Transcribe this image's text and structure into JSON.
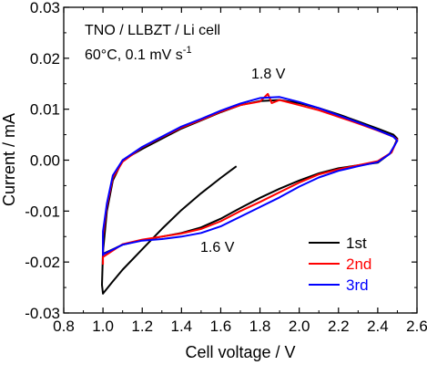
{
  "chart_data": {
    "type": "line",
    "title": "",
    "xlabel": "Cell voltage / V",
    "ylabel": "Current / mA",
    "xlim": [
      0.8,
      2.6
    ],
    "ylim": [
      -0.03,
      0.03
    ],
    "x_ticks": [
      "0.8",
      "1.0",
      "1.2",
      "1.4",
      "1.6",
      "1.8",
      "2.0",
      "2.2",
      "2.4",
      "2.6"
    ],
    "y_ticks": [
      "-0.03",
      "-0.02",
      "-0.01",
      "0.00",
      "0.01",
      "0.02",
      "0.03"
    ],
    "grid": false,
    "legend_position": "bottom-right",
    "annotations": {
      "line1": "TNO / LLBZT / Li cell",
      "line2_prefix": "60°C, 0.1 mV s",
      "line2_sup": "-1",
      "peak_oxidation": "1.8 V",
      "peak_reduction": "1.6 V"
    },
    "series": [
      {
        "name": "1st",
        "color": "#000000",
        "points": [
          [
            1.68,
            -0.0012
          ],
          [
            1.6,
            -0.0035
          ],
          [
            1.5,
            -0.0065
          ],
          [
            1.4,
            -0.0098
          ],
          [
            1.3,
            -0.0135
          ],
          [
            1.2,
            -0.0175
          ],
          [
            1.1,
            -0.0215
          ],
          [
            1.05,
            -0.0238
          ],
          [
            1.0,
            -0.0262
          ],
          [
            0.995,
            -0.0245
          ],
          [
            1.0,
            -0.018
          ],
          [
            1.02,
            -0.01
          ],
          [
            1.05,
            -0.004
          ],
          [
            1.1,
            0.0
          ],
          [
            1.2,
            0.0022
          ],
          [
            1.3,
            0.0042
          ],
          [
            1.4,
            0.0062
          ],
          [
            1.5,
            0.0078
          ],
          [
            1.6,
            0.0094
          ],
          [
            1.7,
            0.0108
          ],
          [
            1.8,
            0.0116
          ],
          [
            1.9,
            0.0118
          ],
          [
            2.0,
            0.0112
          ],
          [
            2.1,
            0.0102
          ],
          [
            2.2,
            0.009
          ],
          [
            2.3,
            0.0076
          ],
          [
            2.4,
            0.0062
          ],
          [
            2.48,
            0.005
          ],
          [
            2.5,
            0.0042
          ],
          [
            2.47,
            0.0015
          ],
          [
            2.4,
            -0.0005
          ],
          [
            2.3,
            -0.001
          ],
          [
            2.2,
            -0.0016
          ],
          [
            2.1,
            -0.0026
          ],
          [
            2.0,
            -0.004
          ],
          [
            1.9,
            -0.0056
          ],
          [
            1.8,
            -0.0074
          ],
          [
            1.7,
            -0.0094
          ],
          [
            1.6,
            -0.0115
          ],
          [
            1.5,
            -0.0132
          ],
          [
            1.4,
            -0.0143
          ],
          [
            1.3,
            -0.015
          ],
          [
            1.2,
            -0.0157
          ],
          [
            1.1,
            -0.0166
          ],
          [
            1.0,
            -0.0184
          ]
        ]
      },
      {
        "name": "2nd",
        "color": "#ff0000",
        "points": [
          [
            1.0,
            -0.0205
          ],
          [
            1.0,
            -0.015
          ],
          [
            1.02,
            -0.009
          ],
          [
            1.05,
            -0.0035
          ],
          [
            1.1,
            -0.0003
          ],
          [
            1.2,
            0.0025
          ],
          [
            1.3,
            0.0045
          ],
          [
            1.4,
            0.0064
          ],
          [
            1.5,
            0.0079
          ],
          [
            1.6,
            0.0095
          ],
          [
            1.7,
            0.0108
          ],
          [
            1.8,
            0.0115
          ],
          [
            1.84,
            0.013
          ],
          [
            1.86,
            0.0112
          ],
          [
            1.9,
            0.0118
          ],
          [
            2.0,
            0.0108
          ],
          [
            2.1,
            0.0098
          ],
          [
            2.2,
            0.0085
          ],
          [
            2.3,
            0.0072
          ],
          [
            2.4,
            0.0058
          ],
          [
            2.48,
            0.0046
          ],
          [
            2.5,
            0.004
          ],
          [
            2.47,
            0.0015
          ],
          [
            2.4,
            -0.0002
          ],
          [
            2.3,
            -0.001
          ],
          [
            2.2,
            -0.0018
          ],
          [
            2.1,
            -0.0028
          ],
          [
            2.0,
            -0.0044
          ],
          [
            1.9,
            -0.0063
          ],
          [
            1.8,
            -0.0082
          ],
          [
            1.7,
            -0.01
          ],
          [
            1.6,
            -0.012
          ],
          [
            1.5,
            -0.0135
          ],
          [
            1.4,
            -0.0144
          ],
          [
            1.3,
            -0.015
          ],
          [
            1.2,
            -0.0156
          ],
          [
            1.1,
            -0.0165
          ],
          [
            1.0,
            -0.019
          ]
        ]
      },
      {
        "name": "3rd",
        "color": "#0000ff",
        "points": [
          [
            1.0,
            -0.0188
          ],
          [
            1.0,
            -0.014
          ],
          [
            1.02,
            -0.0085
          ],
          [
            1.05,
            -0.003
          ],
          [
            1.1,
            0.0
          ],
          [
            1.2,
            0.0026
          ],
          [
            1.3,
            0.0046
          ],
          [
            1.4,
            0.0066
          ],
          [
            1.5,
            0.0081
          ],
          [
            1.6,
            0.0097
          ],
          [
            1.7,
            0.0111
          ],
          [
            1.8,
            0.0122
          ],
          [
            1.9,
            0.0124
          ],
          [
            2.0,
            0.0114
          ],
          [
            2.1,
            0.0102
          ],
          [
            2.2,
            0.0088
          ],
          [
            2.3,
            0.0074
          ],
          [
            2.4,
            0.0059
          ],
          [
            2.48,
            0.0046
          ],
          [
            2.5,
            0.0038
          ],
          [
            2.46,
            0.0012
          ],
          [
            2.4,
            -0.0004
          ],
          [
            2.3,
            -0.0012
          ],
          [
            2.2,
            -0.0021
          ],
          [
            2.1,
            -0.0034
          ],
          [
            2.0,
            -0.0052
          ],
          [
            1.9,
            -0.0073
          ],
          [
            1.8,
            -0.0092
          ],
          [
            1.7,
            -0.0111
          ],
          [
            1.6,
            -0.013
          ],
          [
            1.5,
            -0.0143
          ],
          [
            1.4,
            -0.015
          ],
          [
            1.3,
            -0.0155
          ],
          [
            1.2,
            -0.0158
          ],
          [
            1.1,
            -0.0166
          ],
          [
            1.0,
            -0.0185
          ]
        ]
      }
    ]
  }
}
